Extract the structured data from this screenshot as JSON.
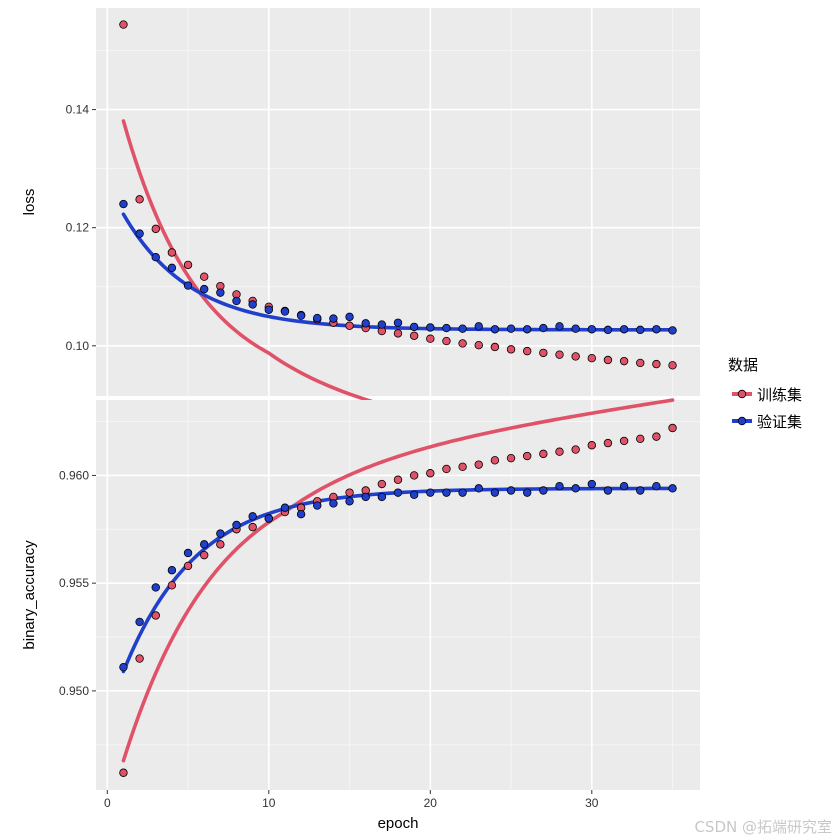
{
  "chart_data": {
    "type": "scatter",
    "xlabel": "epoch",
    "xlim": [
      -0.7,
      36.7
    ],
    "x_ticks": [
      0,
      10,
      20,
      30
    ],
    "x_tick_labels": [
      "0",
      "10",
      "20",
      "30"
    ],
    "legend": {
      "title": "数据",
      "entries": [
        {
          "label": "训练集",
          "color": "#e05268"
        },
        {
          "label": "验证集",
          "color": "#2040cc"
        }
      ]
    },
    "panels": [
      {
        "ylabel": "loss",
        "ylim": [
          0.0915,
          0.1572
        ],
        "y_ticks": [
          0.1,
          0.12,
          0.14
        ],
        "y_tick_labels": [
          "0.10",
          "0.12",
          "0.14"
        ],
        "series": [
          {
            "name": "训练集",
            "x": [
              1,
              2,
              3,
              4,
              5,
              6,
              7,
              8,
              9,
              10,
              11,
              12,
              13,
              14,
              15,
              16,
              17,
              18,
              19,
              20,
              21,
              22,
              23,
              24,
              25,
              26,
              27,
              28,
              29,
              30,
              31,
              32,
              33,
              34,
              35
            ],
            "values": [
              0.1544,
              0.1248,
              0.1198,
              0.1158,
              0.1137,
              0.1117,
              0.1101,
              0.1087,
              0.1076,
              0.1066,
              0.1059,
              0.1052,
              0.1045,
              0.1039,
              0.1034,
              0.103,
              0.1025,
              0.1021,
              0.1017,
              0.1012,
              0.1008,
              0.1004,
              0.1001,
              0.0998,
              0.0994,
              0.0991,
              0.0988,
              0.0985,
              0.0982,
              0.0979,
              0.0976,
              0.0974,
              0.0971,
              0.0969,
              0.0967
            ]
          },
          {
            "name": "验证集",
            "x": [
              1,
              2,
              3,
              4,
              5,
              6,
              7,
              8,
              9,
              10,
              11,
              12,
              13,
              14,
              15,
              16,
              17,
              18,
              19,
              20,
              21,
              22,
              23,
              24,
              25,
              26,
              27,
              28,
              29,
              30,
              31,
              32,
              33,
              34,
              35
            ],
            "values": [
              0.124,
              0.119,
              0.115,
              0.1132,
              0.1102,
              0.1096,
              0.109,
              0.1076,
              0.107,
              0.1061,
              0.1058,
              0.1051,
              0.1047,
              0.1046,
              0.1049,
              0.1038,
              0.1036,
              0.1039,
              0.1032,
              0.1031,
              0.103,
              0.1029,
              0.1033,
              0.1028,
              0.1029,
              0.1028,
              0.103,
              0.1033,
              0.1029,
              0.1028,
              0.1027,
              0.1028,
              0.1027,
              0.1028,
              0.1026
            ]
          }
        ],
        "smooth": [
          {
            "name": "训练集",
            "model": "exp",
            "a": 0.0917,
            "b": 0.04638,
            "k": 0.209,
            "x0": 1,
            "x1": 35,
            "post_slope": -0.00047,
            "post_start": 10
          },
          {
            "name": "验证集",
            "model": "exp",
            "a": 0.1027,
            "b": 0.01958,
            "k": 0.24,
            "x0": 1,
            "x1": 35
          }
        ]
      },
      {
        "ylabel": "binary_accuracy",
        "ylim": [
          0.9454,
          0.9635
        ],
        "y_ticks": [
          0.95,
          0.955,
          0.96
        ],
        "y_tick_labels": [
          "0.950",
          "0.955",
          "0.960"
        ],
        "series": [
          {
            "name": "训练集",
            "x": [
              1,
              2,
              3,
              4,
              5,
              6,
              7,
              8,
              9,
              10,
              11,
              12,
              13,
              14,
              15,
              16,
              17,
              18,
              19,
              20,
              21,
              22,
              23,
              24,
              25,
              26,
              27,
              28,
              29,
              30,
              31,
              32,
              33,
              34,
              35
            ],
            "values": [
              0.9462,
              0.9515,
              0.9535,
              0.9549,
              0.9558,
              0.9563,
              0.9568,
              0.9575,
              0.9576,
              0.958,
              0.9583,
              0.9585,
              0.9588,
              0.959,
              0.9592,
              0.9593,
              0.9596,
              0.9598,
              0.96,
              0.9601,
              0.9603,
              0.9604,
              0.9605,
              0.9607,
              0.9608,
              0.9609,
              0.961,
              0.9611,
              0.9612,
              0.9614,
              0.9615,
              0.9616,
              0.9617,
              0.9618,
              0.9622
            ]
          },
          {
            "name": "验证集",
            "x": [
              1,
              2,
              3,
              4,
              5,
              6,
              7,
              8,
              9,
              10,
              11,
              12,
              13,
              14,
              15,
              16,
              17,
              18,
              19,
              20,
              21,
              22,
              23,
              24,
              25,
              26,
              27,
              28,
              29,
              30,
              31,
              32,
              33,
              34,
              35
            ],
            "values": [
              0.9511,
              0.9532,
              0.9548,
              0.9556,
              0.9564,
              0.9568,
              0.9573,
              0.9577,
              0.9581,
              0.958,
              0.9585,
              0.9582,
              0.9586,
              0.9587,
              0.9588,
              0.959,
              0.959,
              0.9592,
              0.9591,
              0.9592,
              0.9592,
              0.9592,
              0.9594,
              0.9592,
              0.9593,
              0.9592,
              0.9593,
              0.9595,
              0.9594,
              0.9596,
              0.9593,
              0.9595,
              0.9593,
              0.9595,
              0.9594
            ]
          }
        ],
        "smooth": [
          {
            "name": "训练集",
            "model": "exp",
            "a": 0.9609,
            "b": -0.01414,
            "k": 0.1696,
            "x0": 1,
            "x1": 35,
            "post_slope": 0.00011,
            "post_start": 11
          },
          {
            "name": "验证集",
            "model": "exp",
            "a": 0.9594,
            "b": -0.0085,
            "k": 0.2204,
            "x0": 1,
            "x1": 35
          }
        ]
      }
    ]
  },
  "watermark": "CSDN @拓端研究室"
}
